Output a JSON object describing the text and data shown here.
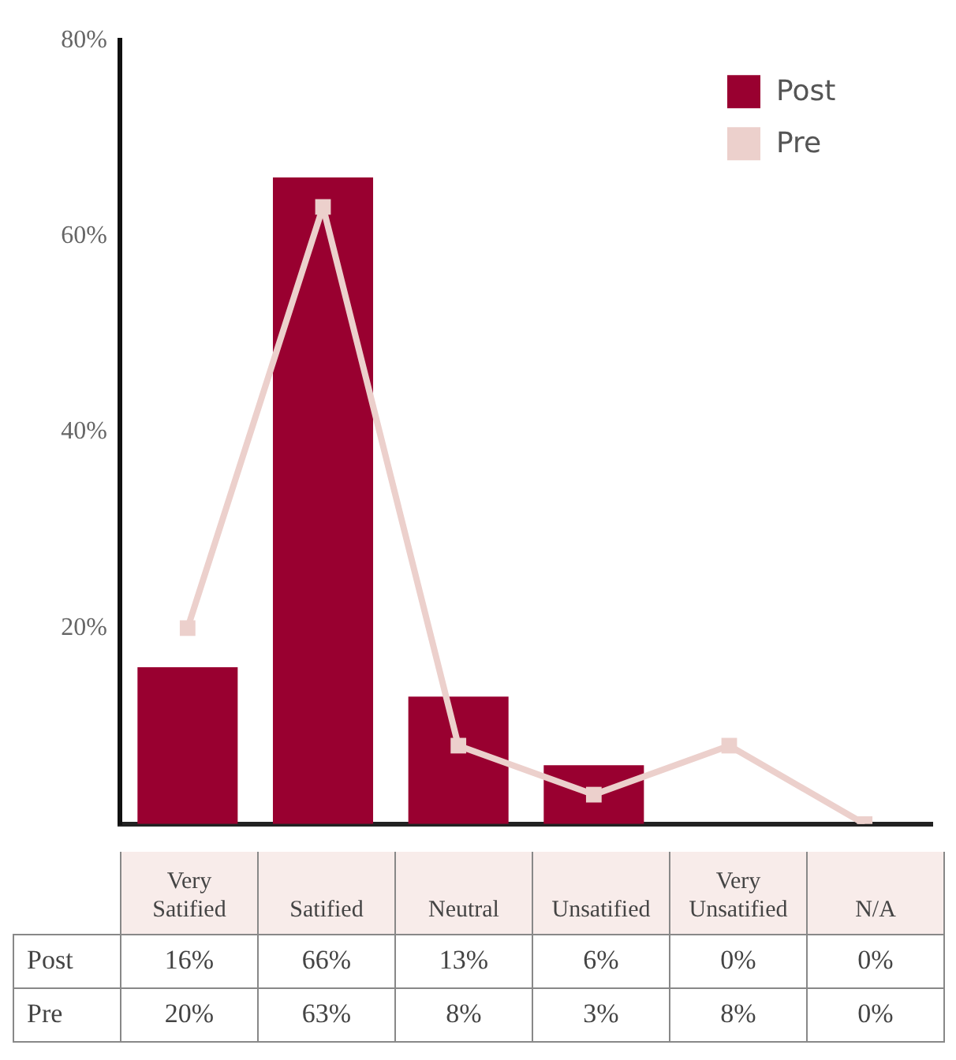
{
  "chart_data": {
    "type": "bar",
    "categories": [
      "Very Satified",
      "Satified",
      "Neutral",
      "Unsatified",
      "Very Unsatified",
      "N/A"
    ],
    "series": [
      {
        "name": "Post",
        "color": "#990030",
        "values": [
          16,
          66,
          13,
          6,
          0,
          0
        ],
        "value_labels": [
          "16%",
          "66%",
          "13%",
          "6%",
          "0%",
          "0%"
        ]
      },
      {
        "name": "Pre",
        "type": "line",
        "color": "#ecd0cc",
        "marker": "square",
        "values": [
          20,
          63,
          8,
          3,
          8,
          0
        ],
        "value_labels": [
          "20%",
          "63%",
          "8%",
          "3%",
          "8%",
          "0%"
        ]
      }
    ],
    "ylim": [
      0,
      80
    ],
    "yticks": [
      {
        "value": 20,
        "label": "20%"
      },
      {
        "value": 40,
        "label": "40%"
      },
      {
        "value": 60,
        "label": "60%"
      },
      {
        "value": 80,
        "label": "80%"
      }
    ],
    "grid": false,
    "legend": "top right"
  }
}
